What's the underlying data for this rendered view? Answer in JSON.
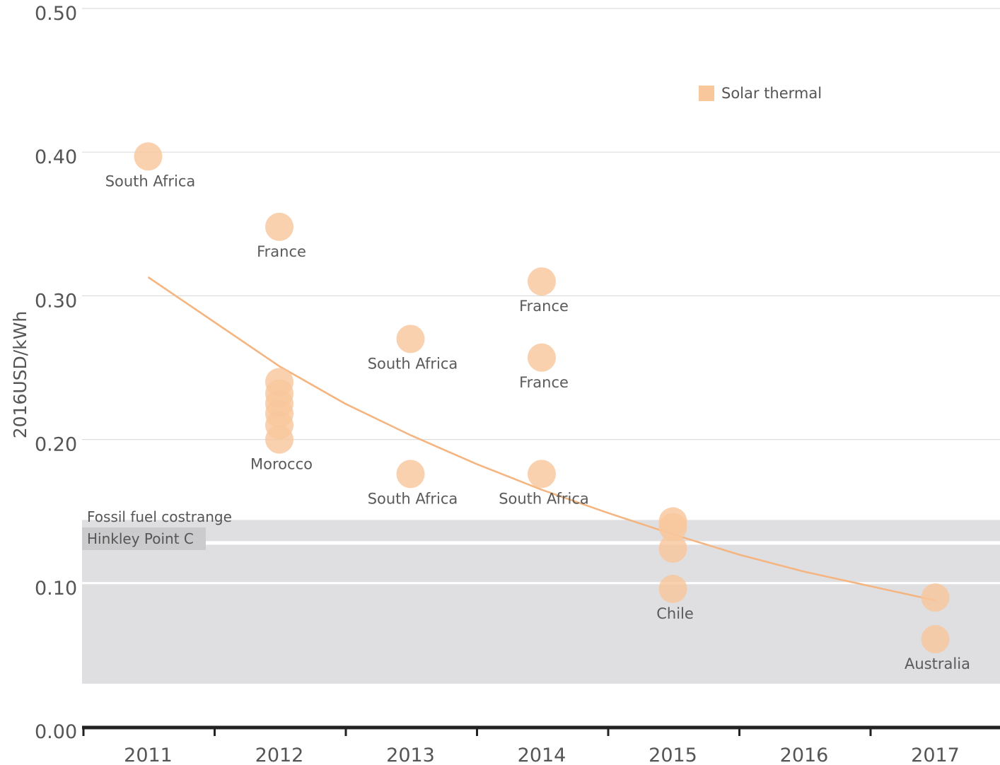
{
  "colors": {
    "series": "#f9c79c",
    "trend": "#f4b581",
    "grid": "#dddddd",
    "band": "#dfdfe1",
    "band_label_bg": "#cbcbcd",
    "axis": "#222222"
  },
  "chart_data": {
    "type": "scatter",
    "title": "",
    "xlabel": "",
    "ylabel": "2016USD/kWh",
    "xlim": [
      2010.5,
      2017.5
    ],
    "ylim": [
      0,
      0.5
    ],
    "x_ticks": [
      2011,
      2012,
      2013,
      2014,
      2015,
      2016,
      2017
    ],
    "x_tick_labels": [
      "2011",
      "2012",
      "2013",
      "2014",
      "2015",
      "2016",
      "2017"
    ],
    "y_ticks": [
      0,
      0.1,
      0.2,
      0.3,
      0.4,
      0.5
    ],
    "y_tick_labels": [
      "0.00",
      "0.10",
      "0.20",
      "0.30",
      "0.40",
      "0.50"
    ],
    "grid": true,
    "legend": {
      "placement": "top-right",
      "entries": [
        {
          "name": "Solar thermal"
        }
      ]
    },
    "series": [
      {
        "name": "Solar thermal",
        "points": [
          {
            "x": 2011,
            "y": 0.397,
            "label": "South Africa"
          },
          {
            "x": 2012,
            "y": 0.348,
            "label": "France"
          },
          {
            "x": 2012,
            "y": 0.24,
            "label": ""
          },
          {
            "x": 2012,
            "y": 0.232,
            "label": ""
          },
          {
            "x": 2012,
            "y": 0.225,
            "label": ""
          },
          {
            "x": 2012,
            "y": 0.218,
            "label": ""
          },
          {
            "x": 2012,
            "y": 0.21,
            "label": ""
          },
          {
            "x": 2012,
            "y": 0.2,
            "label": "Morocco"
          },
          {
            "x": 2013,
            "y": 0.27,
            "label": "South Africa"
          },
          {
            "x": 2013,
            "y": 0.176,
            "label": "South Africa"
          },
          {
            "x": 2014,
            "y": 0.31,
            "label": "France"
          },
          {
            "x": 2014,
            "y": 0.257,
            "label": "France"
          },
          {
            "x": 2014,
            "y": 0.176,
            "label": "South Africa"
          },
          {
            "x": 2015,
            "y": 0.143,
            "label": ""
          },
          {
            "x": 2015,
            "y": 0.139,
            "label": ""
          },
          {
            "x": 2015,
            "y": 0.124,
            "label": ""
          },
          {
            "x": 2015,
            "y": 0.096,
            "label": "Chile"
          },
          {
            "x": 2017,
            "y": 0.09,
            "label": ""
          },
          {
            "x": 2017,
            "y": 0.061,
            "label": "Australia"
          }
        ]
      }
    ],
    "trend_line": {
      "x": [
        2011,
        2011.5,
        2012,
        2012.5,
        2013,
        2013.5,
        2014,
        2014.5,
        2015,
        2015.5,
        2016,
        2016.5,
        2017
      ],
      "y": [
        0.313,
        0.282,
        0.251,
        0.225,
        0.203,
        0.183,
        0.165,
        0.149,
        0.134,
        0.12,
        0.108,
        0.098,
        0.088
      ]
    },
    "annotations": {
      "fossil_band": {
        "label": "Fossil fuel costrange",
        "y_range": [
          0.03,
          0.144
        ]
      },
      "hinkley": {
        "label": "Hinkley Point C",
        "y": 0.127
      }
    }
  }
}
